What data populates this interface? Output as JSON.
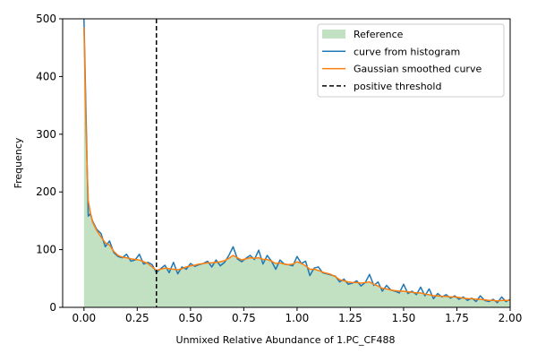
{
  "chart_data": {
    "type": "area",
    "title": "",
    "xlabel": "Unmixed Relative Abundance of 1.PC_CF488",
    "ylabel": "Frequency",
    "xlim": [
      -0.1,
      2.0
    ],
    "ylim": [
      0,
      500
    ],
    "x_ticks": [
      0.0,
      0.25,
      0.5,
      0.75,
      1.0,
      1.25,
      1.5,
      1.75,
      2.0
    ],
    "x_tick_labels": [
      "0.00",
      "0.25",
      "0.50",
      "0.75",
      "1.00",
      "1.25",
      "1.50",
      "1.75",
      "2.00"
    ],
    "y_ticks": [
      0,
      100,
      200,
      300,
      400,
      500
    ],
    "y_tick_labels": [
      "0",
      "100",
      "200",
      "300",
      "400",
      "500"
    ],
    "grid": false,
    "legend_position": "top-right",
    "threshold": {
      "name": "positive threshold",
      "x": 0.34,
      "style": "dashed",
      "color": "#000000"
    },
    "series": [
      {
        "name": "Reference",
        "kind": "filled-area",
        "color": "#c2e0c2"
      },
      {
        "name": "curve from histogram",
        "kind": "line",
        "color": "#1f77b4"
      },
      {
        "name": "Gaussian smoothed curve",
        "kind": "line",
        "color": "#ff7f0e"
      }
    ],
    "x": [
      0.0,
      0.01,
      0.02,
      0.03,
      0.04,
      0.06,
      0.08,
      0.1,
      0.12,
      0.14,
      0.16,
      0.18,
      0.2,
      0.22,
      0.24,
      0.26,
      0.28,
      0.3,
      0.32,
      0.34,
      0.36,
      0.38,
      0.4,
      0.42,
      0.44,
      0.46,
      0.48,
      0.5,
      0.52,
      0.54,
      0.56,
      0.58,
      0.6,
      0.62,
      0.64,
      0.66,
      0.68,
      0.7,
      0.72,
      0.74,
      0.76,
      0.78,
      0.8,
      0.82,
      0.84,
      0.86,
      0.88,
      0.9,
      0.92,
      0.94,
      0.96,
      0.98,
      1.0,
      1.02,
      1.04,
      1.06,
      1.08,
      1.1,
      1.12,
      1.14,
      1.16,
      1.18,
      1.2,
      1.22,
      1.24,
      1.26,
      1.28,
      1.3,
      1.32,
      1.34,
      1.36,
      1.38,
      1.4,
      1.42,
      1.44,
      1.46,
      1.48,
      1.5,
      1.52,
      1.54,
      1.56,
      1.58,
      1.6,
      1.62,
      1.64,
      1.66,
      1.68,
      1.7,
      1.72,
      1.74,
      1.76,
      1.78,
      1.8,
      1.82,
      1.84,
      1.86,
      1.88,
      1.9,
      1.92,
      1.94,
      1.96,
      1.98,
      2.0
    ],
    "histogram_values": [
      500,
      330,
      158,
      162,
      150,
      135,
      128,
      105,
      115,
      95,
      88,
      86,
      92,
      80,
      82,
      92,
      75,
      78,
      74,
      60,
      67,
      73,
      60,
      78,
      58,
      70,
      66,
      76,
      71,
      74,
      76,
      80,
      70,
      82,
      72,
      78,
      90,
      105,
      84,
      79,
      85,
      90,
      83,
      99,
      75,
      90,
      80,
      66,
      82,
      75,
      74,
      72,
      88,
      76,
      80,
      55,
      68,
      70,
      60,
      58,
      56,
      54,
      44,
      49,
      40,
      42,
      46,
      37,
      43,
      57,
      38,
      44,
      28,
      38,
      30,
      28,
      25,
      40,
      24,
      28,
      22,
      35,
      20,
      32,
      15,
      24,
      18,
      22,
      16,
      20,
      14,
      18,
      12,
      16,
      10,
      20,
      12,
      10,
      14,
      8,
      18,
      10,
      14
    ],
    "smoothed_values": [
      485,
      300,
      185,
      165,
      148,
      133,
      122,
      112,
      108,
      97,
      90,
      87,
      86,
      84,
      83,
      82,
      79,
      76,
      70,
      64,
      66,
      68,
      67,
      66,
      65,
      67,
      70,
      72,
      73,
      75,
      76,
      77,
      77,
      78,
      79,
      81,
      85,
      90,
      86,
      82,
      84,
      86,
      85,
      86,
      83,
      83,
      80,
      76,
      77,
      75,
      74,
      75,
      79,
      76,
      72,
      66,
      66,
      64,
      61,
      59,
      57,
      53,
      48,
      46,
      44,
      43,
      43,
      42,
      43,
      44,
      40,
      37,
      33,
      32,
      30,
      29,
      28,
      28,
      27,
      26,
      25,
      25,
      23,
      22,
      20,
      20,
      19,
      19,
      18,
      18,
      17,
      16,
      15,
      15,
      14,
      14,
      13,
      12,
      12,
      11,
      12,
      12,
      12
    ]
  }
}
